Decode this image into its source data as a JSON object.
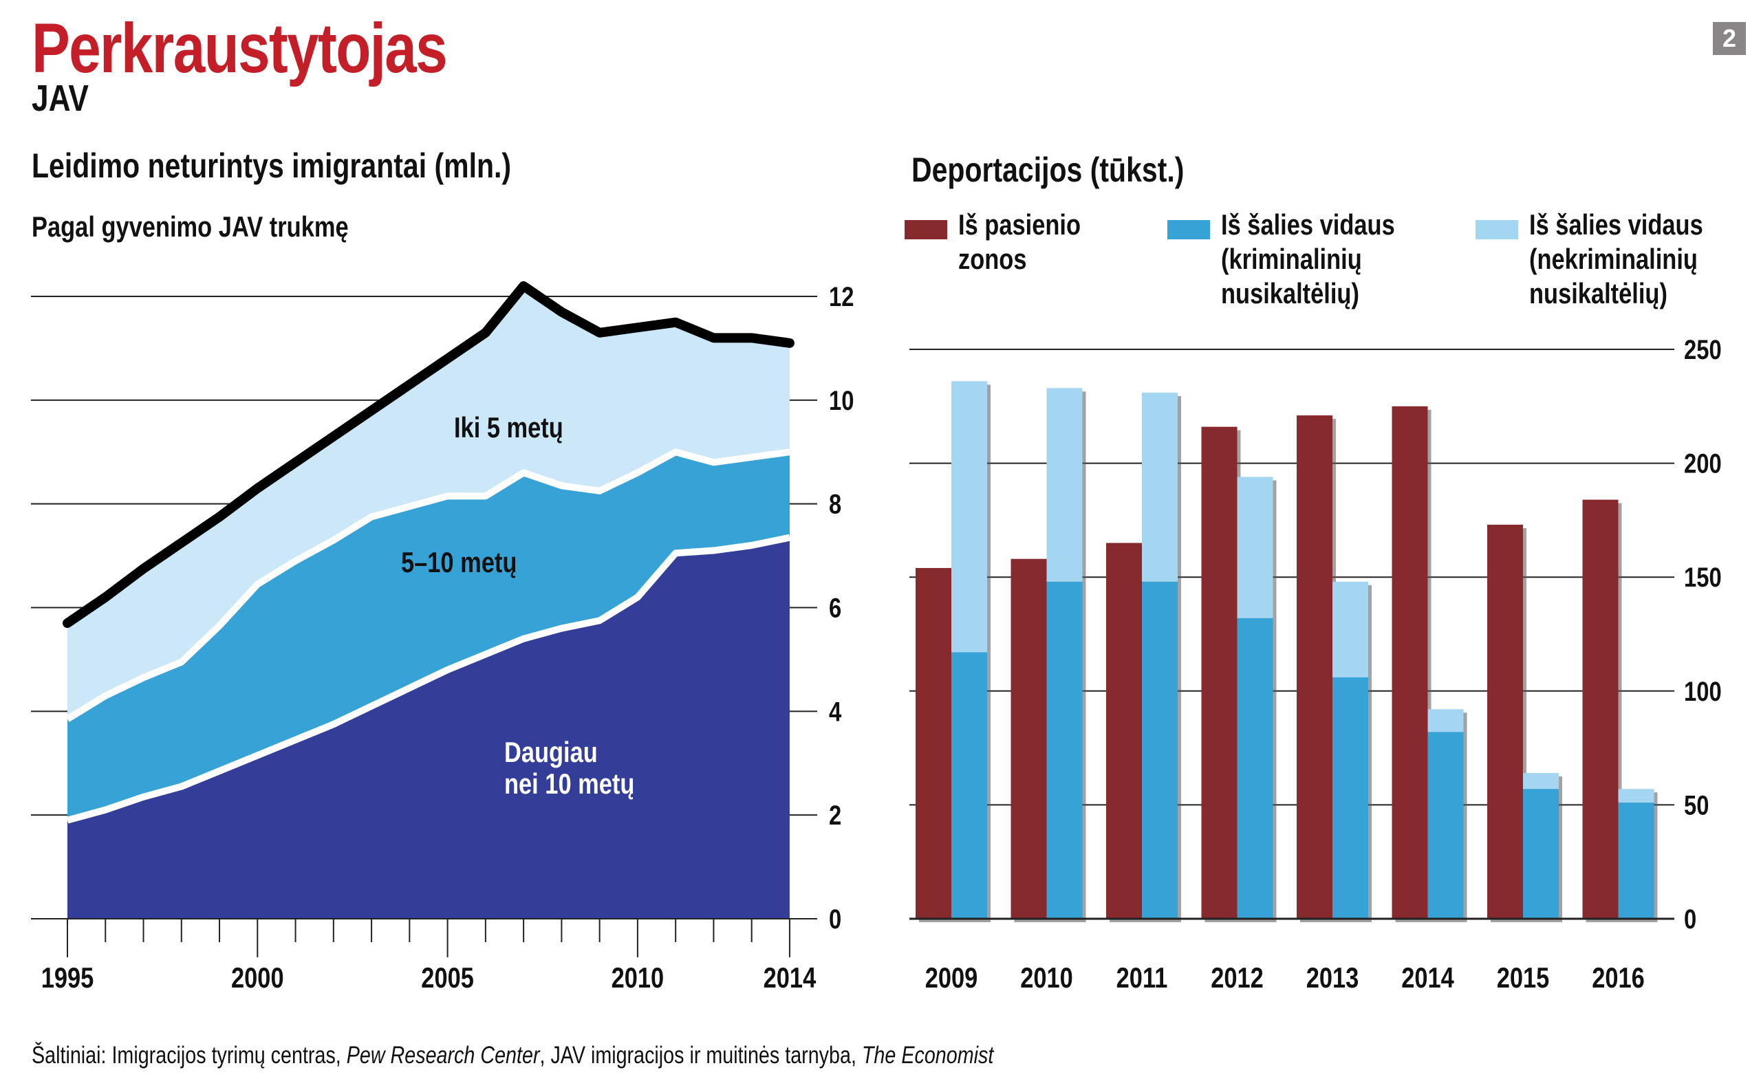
{
  "header": {
    "title": "Perkraustytojas",
    "subtitle": "JAV",
    "page_badge": "2"
  },
  "footer": {
    "prefix": "Šaltiniai: Imigracijos tyrimų centras, ",
    "source_1": "Pew Research Center",
    "middle": ", JAV imigracijos ir muitinės tarnyba, ",
    "source_2": "The Economist"
  },
  "colors": {
    "title_red": "#c41f28",
    "over10": "#343e98",
    "five_ten": "#36a2d6",
    "under5": "#cbe7f8",
    "border": "#862a2d",
    "interior_criminal": "#36a2d6",
    "interior_noncriminal": "#a4d5f1",
    "badge": "#8a8587"
  },
  "chart_data": [
    {
      "type": "area",
      "title": "Leidimo neturintys imigrantai (mln.)",
      "subtitle": "Pagal gyvenimo JAV trukmę",
      "xlabel": "",
      "ylabel": "",
      "x": [
        1995,
        1996,
        1997,
        1998,
        1999,
        2000,
        2001,
        2002,
        2003,
        2004,
        2005,
        2006,
        2007,
        2008,
        2009,
        2010,
        2011,
        2012,
        2013,
        2014
      ],
      "x_tick_labels": [
        "1995",
        "2000",
        "2005",
        "2010",
        "2014"
      ],
      "y_ticks": [
        0,
        2,
        4,
        6,
        8,
        10,
        12
      ],
      "y_tick_labels": [
        "0",
        "2",
        "4",
        "6",
        "8",
        "10",
        "12"
      ],
      "ylim": [
        0,
        12
      ],
      "grid": true,
      "y_axis_position": "right",
      "stacked": true,
      "series": [
        {
          "name": "Daugiau nei 10 metų",
          "label_lines": [
            "Daugiau",
            "nei 10 metų"
          ],
          "values": [
            1.9,
            2.1,
            2.35,
            2.55,
            2.85,
            3.15,
            3.45,
            3.75,
            4.1,
            4.45,
            4.8,
            5.1,
            5.4,
            5.6,
            5.75,
            6.2,
            7.05,
            7.1,
            7.2,
            7.35
          ]
        },
        {
          "name": "5–10 metų",
          "label_lines": [
            "5–10 metų"
          ],
          "values": [
            1.95,
            2.2,
            2.3,
            2.4,
            2.8,
            3.3,
            3.45,
            3.55,
            3.65,
            3.5,
            3.35,
            3.05,
            3.2,
            2.75,
            2.5,
            2.4,
            1.95,
            1.7,
            1.7,
            1.65
          ]
        },
        {
          "name": "Iki 5 metų",
          "label_lines": [
            "Iki 5 metų"
          ],
          "values": [
            1.85,
            1.9,
            2.1,
            2.3,
            2.1,
            1.85,
            1.9,
            2.0,
            2.05,
            2.35,
            2.65,
            3.15,
            3.6,
            3.35,
            3.05,
            2.8,
            2.5,
            2.4,
            2.3,
            2.1
          ]
        }
      ],
      "total": {
        "name": "Iš viso",
        "values": [
          5.7,
          6.2,
          6.75,
          7.25,
          7.75,
          8.3,
          8.8,
          9.3,
          9.8,
          10.3,
          10.8,
          11.3,
          12.2,
          11.7,
          11.3,
          11.4,
          11.5,
          11.2,
          11.2,
          11.1
        ]
      }
    },
    {
      "type": "bar",
      "title": "Deportacijos (tūkst.)",
      "xlabel": "",
      "ylabel": "",
      "categories": [
        "2009",
        "2010",
        "2011",
        "2012",
        "2013",
        "2014",
        "2015",
        "2016"
      ],
      "y_ticks": [
        0,
        50,
        100,
        150,
        200,
        250
      ],
      "y_tick_labels": [
        "0",
        "50",
        "100",
        "150",
        "200",
        "250"
      ],
      "ylim": [
        0,
        250
      ],
      "grid": true,
      "y_axis_position": "right",
      "legend": "top",
      "series": [
        {
          "name": "Iš pasienio zonos",
          "legend_lines": [
            "Iš pasienio",
            "zonos"
          ],
          "stack": "border",
          "values": [
            154,
            158,
            165,
            216,
            221,
            225,
            173,
            184
          ]
        },
        {
          "name": "Iš šalies vidaus (kriminalinių nusikaltėlių)",
          "legend_lines": [
            "Iš šalies vidaus",
            "(kriminalinių",
            "nusikaltėlių)"
          ],
          "stack": "interior",
          "values": [
            117,
            148,
            148,
            132,
            106,
            82,
            57,
            51
          ]
        },
        {
          "name": "Iš šalies vidaus (nekriminalinių nusikaltėlių)",
          "legend_lines": [
            "Iš šalies vidaus",
            "(nekriminalinių",
            "nusikaltėlių)"
          ],
          "stack": "interior",
          "values": [
            119,
            85,
            83,
            62,
            42,
            10,
            7,
            6
          ]
        }
      ]
    }
  ]
}
